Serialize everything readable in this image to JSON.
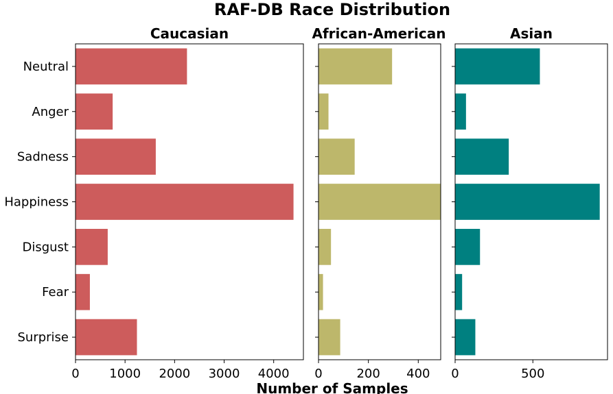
{
  "chart_data": {
    "type": "bar",
    "orientation": "horizontal",
    "title": "RAF-DB Race Distribution",
    "xlabel": "Number of Samples",
    "categories": [
      "Neutral",
      "Anger",
      "Sadness",
      "Happiness",
      "Disgust",
      "Fear",
      "Surprise"
    ],
    "panels": [
      {
        "name": "Caucasian",
        "color": "#cd5c5c",
        "xlim": [
          0,
          4600
        ],
        "xticks": [
          0,
          1000,
          2000,
          3000,
          4000
        ],
        "values": [
          2250,
          750,
          1620,
          4400,
          650,
          290,
          1240
        ]
      },
      {
        "name": "African-American",
        "color": "#bdb76b",
        "xlim": [
          0,
          490
        ],
        "xticks": [
          0,
          200,
          400
        ],
        "values": [
          295,
          40,
          145,
          490,
          50,
          18,
          87
        ]
      },
      {
        "name": "Asian",
        "color": "#008080",
        "xlim": [
          0,
          980
        ],
        "xticks": [
          0,
          500
        ],
        "values": [
          545,
          70,
          345,
          930,
          160,
          45,
          130
        ]
      }
    ]
  }
}
